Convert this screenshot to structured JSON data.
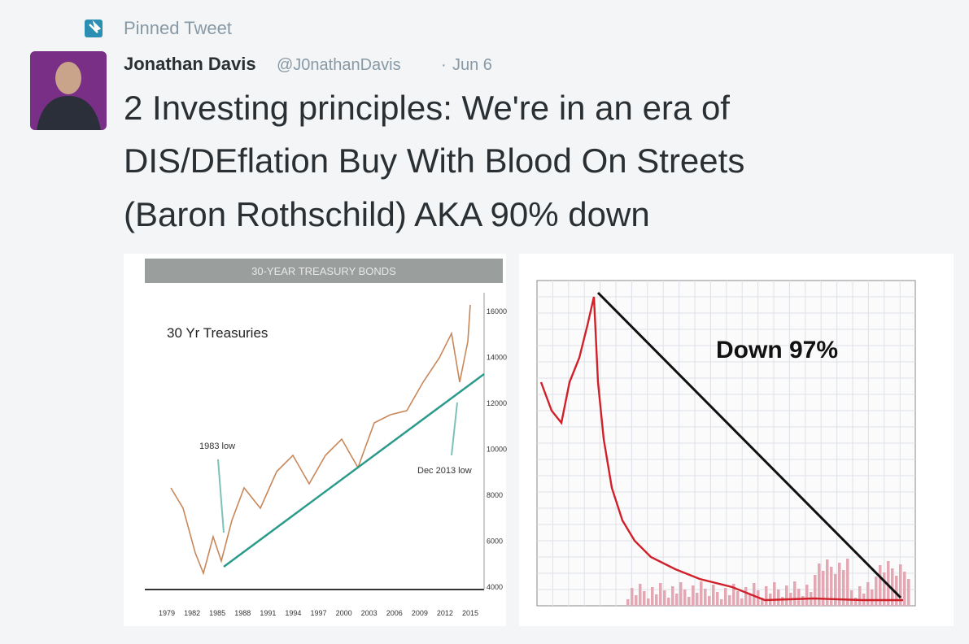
{
  "pinned": "Pinned Tweet",
  "author": {
    "name": "Jonathan Davis",
    "handle": "@J0nathanDavis",
    "separator": "·",
    "date": "Jun 6"
  },
  "text_lines": [
    "2 Investing principles: We're in an era of",
    "DIS/DEflation Buy With Blood On Streets",
    "(Baron Rothschild) AKA 90% down"
  ],
  "images": [
    {
      "title": "30-YEAR TREASURY BONDS",
      "label": "30 Yr Treasuries",
      "annotations": [
        "1983 low",
        "Dec 2013 low"
      ],
      "x_labels": [
        "1979",
        "1982",
        "1985",
        "1988",
        "1991",
        "1994",
        "1997",
        "2000",
        "2003",
        "2006",
        "2009",
        "2012",
        "2015"
      ],
      "y_labels": [
        "16000",
        "14000",
        "12000",
        "10000",
        "8000",
        "6000",
        "4000"
      ]
    },
    {
      "annotation": "Down 97%"
    }
  ]
}
